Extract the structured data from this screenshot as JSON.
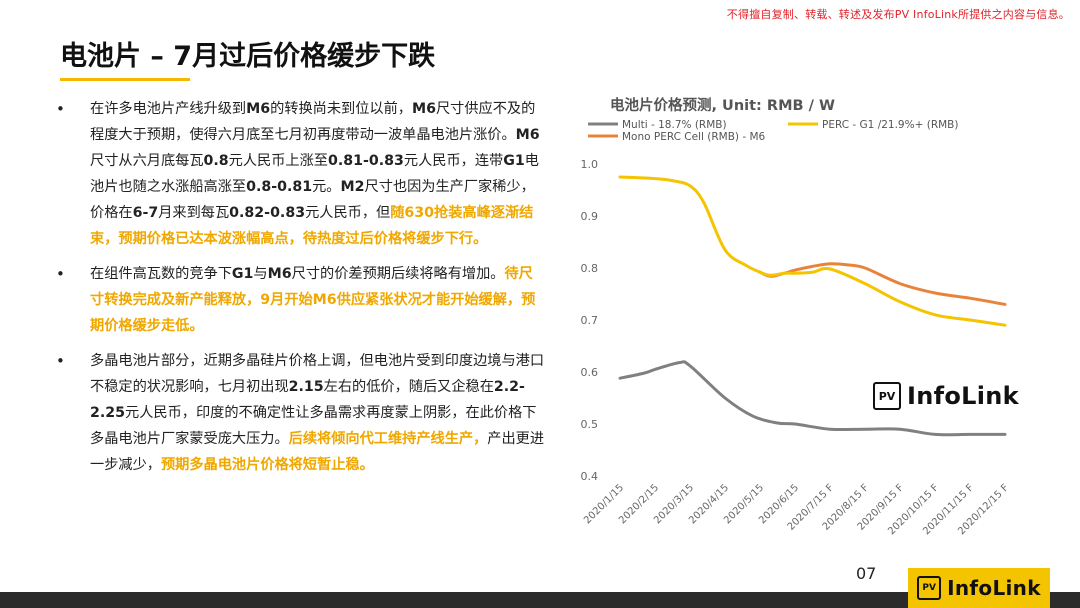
{
  "copyright": "不得擅自复制、转载、转述及发布PV InfoLink所提供之内容与信息。",
  "title": "电池片 – 7月过后价格缓步下跌",
  "bullets": [
    {
      "segments": [
        {
          "t": "在许多电池片产线升级到",
          "s": "n"
        },
        {
          "t": "M6",
          "s": "b"
        },
        {
          "t": "的转换尚未到位以前，",
          "s": "n"
        },
        {
          "t": "M6",
          "s": "b"
        },
        {
          "t": "尺寸供应不及的程度大于预期，使得六月底至七月初再度带动一波单晶电池片涨价。",
          "s": "n"
        },
        {
          "t": "M6",
          "s": "b"
        },
        {
          "t": "尺寸从六月底每瓦",
          "s": "n"
        },
        {
          "t": "0.8",
          "s": "b"
        },
        {
          "t": "元人民币上涨至",
          "s": "n"
        },
        {
          "t": "0.81-0.83",
          "s": "b"
        },
        {
          "t": "元人民币，连带",
          "s": "n"
        },
        {
          "t": "G1",
          "s": "b"
        },
        {
          "t": "电池片也随之水涨船高涨至",
          "s": "n"
        },
        {
          "t": "0.8-0.81",
          "s": "b"
        },
        {
          "t": "元。",
          "s": "n"
        },
        {
          "t": "M2",
          "s": "b"
        },
        {
          "t": "尺寸也因为生产厂家稀少，价格在",
          "s": "n"
        },
        {
          "t": "6-7",
          "s": "b"
        },
        {
          "t": "月来到每瓦",
          "s": "n"
        },
        {
          "t": "0.82-0.83",
          "s": "b"
        },
        {
          "t": "元人民币，但",
          "s": "n"
        },
        {
          "t": "随630抢装高峰逐渐结束，预期价格已达本波涨幅高点，待热度过后价格将缓步下行。",
          "s": "h"
        }
      ]
    },
    {
      "segments": [
        {
          "t": "在组件高瓦数的竞争下",
          "s": "n"
        },
        {
          "t": "G1",
          "s": "b"
        },
        {
          "t": "与",
          "s": "n"
        },
        {
          "t": "M6",
          "s": "b"
        },
        {
          "t": "尺寸的价差预期后续将略有增加。",
          "s": "n"
        },
        {
          "t": "待尺寸转换完成及新产能释放，9月开始M6供应紧张状况才能开始缓解，预期价格缓步走低。",
          "s": "h"
        }
      ]
    },
    {
      "segments": [
        {
          "t": "多晶电池片部分，近期多晶硅片价格上调，但电池片受到印度边境与港口不稳定的状况影响，七月初出现",
          "s": "n"
        },
        {
          "t": "2.15",
          "s": "b"
        },
        {
          "t": "左右的低价，随后又企稳在",
          "s": "n"
        },
        {
          "t": "2.2-2.25",
          "s": "b"
        },
        {
          "t": "元人民币，印度的不确定性让多晶需求再度蒙上阴影，在此价格下多晶电池片厂家蒙受庞大压力。",
          "s": "n"
        },
        {
          "t": "后续将倾向代工维持产线生产，",
          "s": "h"
        },
        {
          "t": "产出更进一步减少，",
          "s": "n"
        },
        {
          "t": "预期多晶电池片价格将短暂止稳。",
          "s": "h"
        }
      ]
    }
  ],
  "chart_data": {
    "type": "line",
    "title": "电池片价格预测, Unit: RMB / W",
    "xlabel": "",
    "ylabel": "",
    "ylim": [
      0.4,
      1.0
    ],
    "yticks": [
      "0.4",
      "0.5",
      "0.6",
      "0.7",
      "0.8",
      "0.9",
      "1.0"
    ],
    "grid": false,
    "legend_placement": "top",
    "categories": [
      "2020/1/15",
      "2020/2/15",
      "2020/3/15",
      "2020/4/15",
      "2020/5/15",
      "2020/6/15",
      "2020/7/15 F",
      "2020/8/15 F",
      "2020/9/15 F",
      "2020/10/15 F",
      "2020/11/15 F",
      "2020/12/15 F"
    ],
    "series": [
      {
        "name": "Multi - 18.7% (RMB)",
        "color": "#808080",
        "x": [
          0,
          0.7,
          1,
          1.7,
          2,
          3,
          3.8,
          4.5,
          5,
          6,
          7,
          8,
          9,
          10,
          11
        ],
        "values": [
          0.588,
          0.598,
          0.605,
          0.618,
          0.612,
          0.55,
          0.515,
          0.502,
          0.5,
          0.49,
          0.49,
          0.49,
          0.48,
          0.48,
          0.48
        ]
      },
      {
        "name": "PERC - G1 /21.9%+ (RMB)",
        "color": "#f5c400",
        "x": [
          0,
          1,
          1.5,
          2,
          2.4,
          3,
          3.6,
          4,
          4.3,
          4.7,
          5,
          5.5,
          6,
          7,
          8,
          9,
          10,
          11
        ],
        "values": [
          0.975,
          0.972,
          0.968,
          0.958,
          0.925,
          0.835,
          0.805,
          0.792,
          0.786,
          0.79,
          0.79,
          0.792,
          0.798,
          0.77,
          0.735,
          0.71,
          0.7,
          0.69
        ]
      },
      {
        "name": "Mono PERC Cell (RMB) - M6",
        "color": "#e8843a",
        "x": [
          4.0,
          4.3,
          4.7,
          5,
          5.5,
          6,
          6.5,
          7,
          8,
          9,
          10,
          11
        ],
        "values": [
          0.792,
          0.784,
          0.79,
          0.796,
          0.803,
          0.808,
          0.806,
          0.8,
          0.77,
          0.752,
          0.742,
          0.73
        ]
      }
    ]
  },
  "chart_logo": {
    "box": "PV",
    "text": "InfoLink"
  },
  "page_number": "07",
  "footer_logo": {
    "box": "PV",
    "text": "InfoLink"
  }
}
